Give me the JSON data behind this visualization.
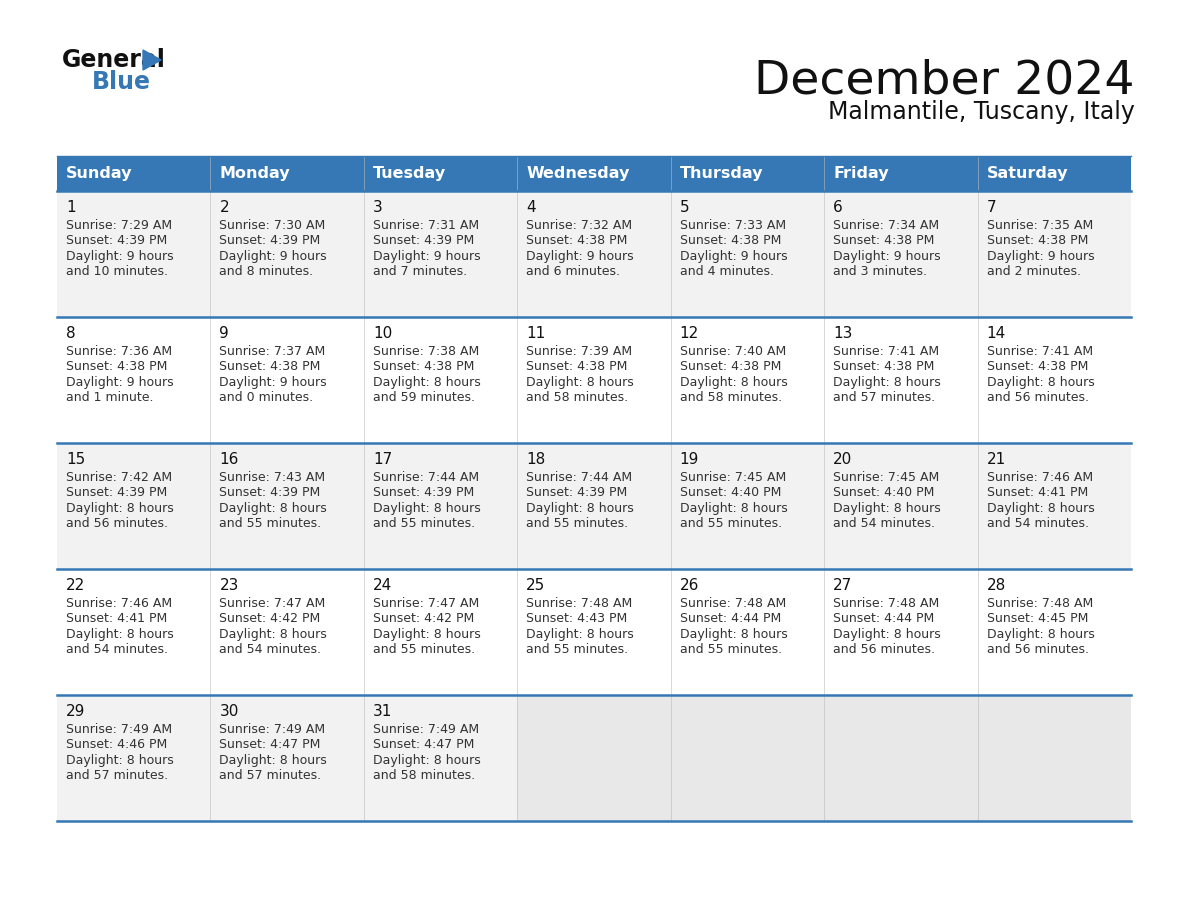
{
  "title": "December 2024",
  "subtitle": "Malmantile, Tuscany, Italy",
  "header_bg": "#3578b5",
  "header_text": "#ffffff",
  "days_of_week": [
    "Sunday",
    "Monday",
    "Tuesday",
    "Wednesday",
    "Thursday",
    "Friday",
    "Saturday"
  ],
  "grid_line_color": "#3578b5",
  "logo_triangle_color": "#3578b5",
  "logo_black": "#1a1a1a",
  "logo_blue": "#3578b5",
  "calendar": [
    [
      {
        "day": 1,
        "sunrise": "7:29 AM",
        "sunset": "4:39 PM",
        "daylight": "9 hours",
        "daylight2": "and 10 minutes."
      },
      {
        "day": 2,
        "sunrise": "7:30 AM",
        "sunset": "4:39 PM",
        "daylight": "9 hours",
        "daylight2": "and 8 minutes."
      },
      {
        "day": 3,
        "sunrise": "7:31 AM",
        "sunset": "4:39 PM",
        "daylight": "9 hours",
        "daylight2": "and 7 minutes."
      },
      {
        "day": 4,
        "sunrise": "7:32 AM",
        "sunset": "4:38 PM",
        "daylight": "9 hours",
        "daylight2": "and 6 minutes."
      },
      {
        "day": 5,
        "sunrise": "7:33 AM",
        "sunset": "4:38 PM",
        "daylight": "9 hours",
        "daylight2": "and 4 minutes."
      },
      {
        "day": 6,
        "sunrise": "7:34 AM",
        "sunset": "4:38 PM",
        "daylight": "9 hours",
        "daylight2": "and 3 minutes."
      },
      {
        "day": 7,
        "sunrise": "7:35 AM",
        "sunset": "4:38 PM",
        "daylight": "9 hours",
        "daylight2": "and 2 minutes."
      }
    ],
    [
      {
        "day": 8,
        "sunrise": "7:36 AM",
        "sunset": "4:38 PM",
        "daylight": "9 hours",
        "daylight2": "and 1 minute."
      },
      {
        "day": 9,
        "sunrise": "7:37 AM",
        "sunset": "4:38 PM",
        "daylight": "9 hours",
        "daylight2": "and 0 minutes."
      },
      {
        "day": 10,
        "sunrise": "7:38 AM",
        "sunset": "4:38 PM",
        "daylight": "8 hours",
        "daylight2": "and 59 minutes."
      },
      {
        "day": 11,
        "sunrise": "7:39 AM",
        "sunset": "4:38 PM",
        "daylight": "8 hours",
        "daylight2": "and 58 minutes."
      },
      {
        "day": 12,
        "sunrise": "7:40 AM",
        "sunset": "4:38 PM",
        "daylight": "8 hours",
        "daylight2": "and 58 minutes."
      },
      {
        "day": 13,
        "sunrise": "7:41 AM",
        "sunset": "4:38 PM",
        "daylight": "8 hours",
        "daylight2": "and 57 minutes."
      },
      {
        "day": 14,
        "sunrise": "7:41 AM",
        "sunset": "4:38 PM",
        "daylight": "8 hours",
        "daylight2": "and 56 minutes."
      }
    ],
    [
      {
        "day": 15,
        "sunrise": "7:42 AM",
        "sunset": "4:39 PM",
        "daylight": "8 hours",
        "daylight2": "and 56 minutes."
      },
      {
        "day": 16,
        "sunrise": "7:43 AM",
        "sunset": "4:39 PM",
        "daylight": "8 hours",
        "daylight2": "and 55 minutes."
      },
      {
        "day": 17,
        "sunrise": "7:44 AM",
        "sunset": "4:39 PM",
        "daylight": "8 hours",
        "daylight2": "and 55 minutes."
      },
      {
        "day": 18,
        "sunrise": "7:44 AM",
        "sunset": "4:39 PM",
        "daylight": "8 hours",
        "daylight2": "and 55 minutes."
      },
      {
        "day": 19,
        "sunrise": "7:45 AM",
        "sunset": "4:40 PM",
        "daylight": "8 hours",
        "daylight2": "and 55 minutes."
      },
      {
        "day": 20,
        "sunrise": "7:45 AM",
        "sunset": "4:40 PM",
        "daylight": "8 hours",
        "daylight2": "and 54 minutes."
      },
      {
        "day": 21,
        "sunrise": "7:46 AM",
        "sunset": "4:41 PM",
        "daylight": "8 hours",
        "daylight2": "and 54 minutes."
      }
    ],
    [
      {
        "day": 22,
        "sunrise": "7:46 AM",
        "sunset": "4:41 PM",
        "daylight": "8 hours",
        "daylight2": "and 54 minutes."
      },
      {
        "day": 23,
        "sunrise": "7:47 AM",
        "sunset": "4:42 PM",
        "daylight": "8 hours",
        "daylight2": "and 54 minutes."
      },
      {
        "day": 24,
        "sunrise": "7:47 AM",
        "sunset": "4:42 PM",
        "daylight": "8 hours",
        "daylight2": "and 55 minutes."
      },
      {
        "day": 25,
        "sunrise": "7:48 AM",
        "sunset": "4:43 PM",
        "daylight": "8 hours",
        "daylight2": "and 55 minutes."
      },
      {
        "day": 26,
        "sunrise": "7:48 AM",
        "sunset": "4:44 PM",
        "daylight": "8 hours",
        "daylight2": "and 55 minutes."
      },
      {
        "day": 27,
        "sunrise": "7:48 AM",
        "sunset": "4:44 PM",
        "daylight": "8 hours",
        "daylight2": "and 56 minutes."
      },
      {
        "day": 28,
        "sunrise": "7:48 AM",
        "sunset": "4:45 PM",
        "daylight": "8 hours",
        "daylight2": "and 56 minutes."
      }
    ],
    [
      {
        "day": 29,
        "sunrise": "7:49 AM",
        "sunset": "4:46 PM",
        "daylight": "8 hours",
        "daylight2": "and 57 minutes."
      },
      {
        "day": 30,
        "sunrise": "7:49 AM",
        "sunset": "4:47 PM",
        "daylight": "8 hours",
        "daylight2": "and 57 minutes."
      },
      {
        "day": 31,
        "sunrise": "7:49 AM",
        "sunset": "4:47 PM",
        "daylight": "8 hours",
        "daylight2": "and 58 minutes."
      },
      null,
      null,
      null,
      null
    ]
  ]
}
